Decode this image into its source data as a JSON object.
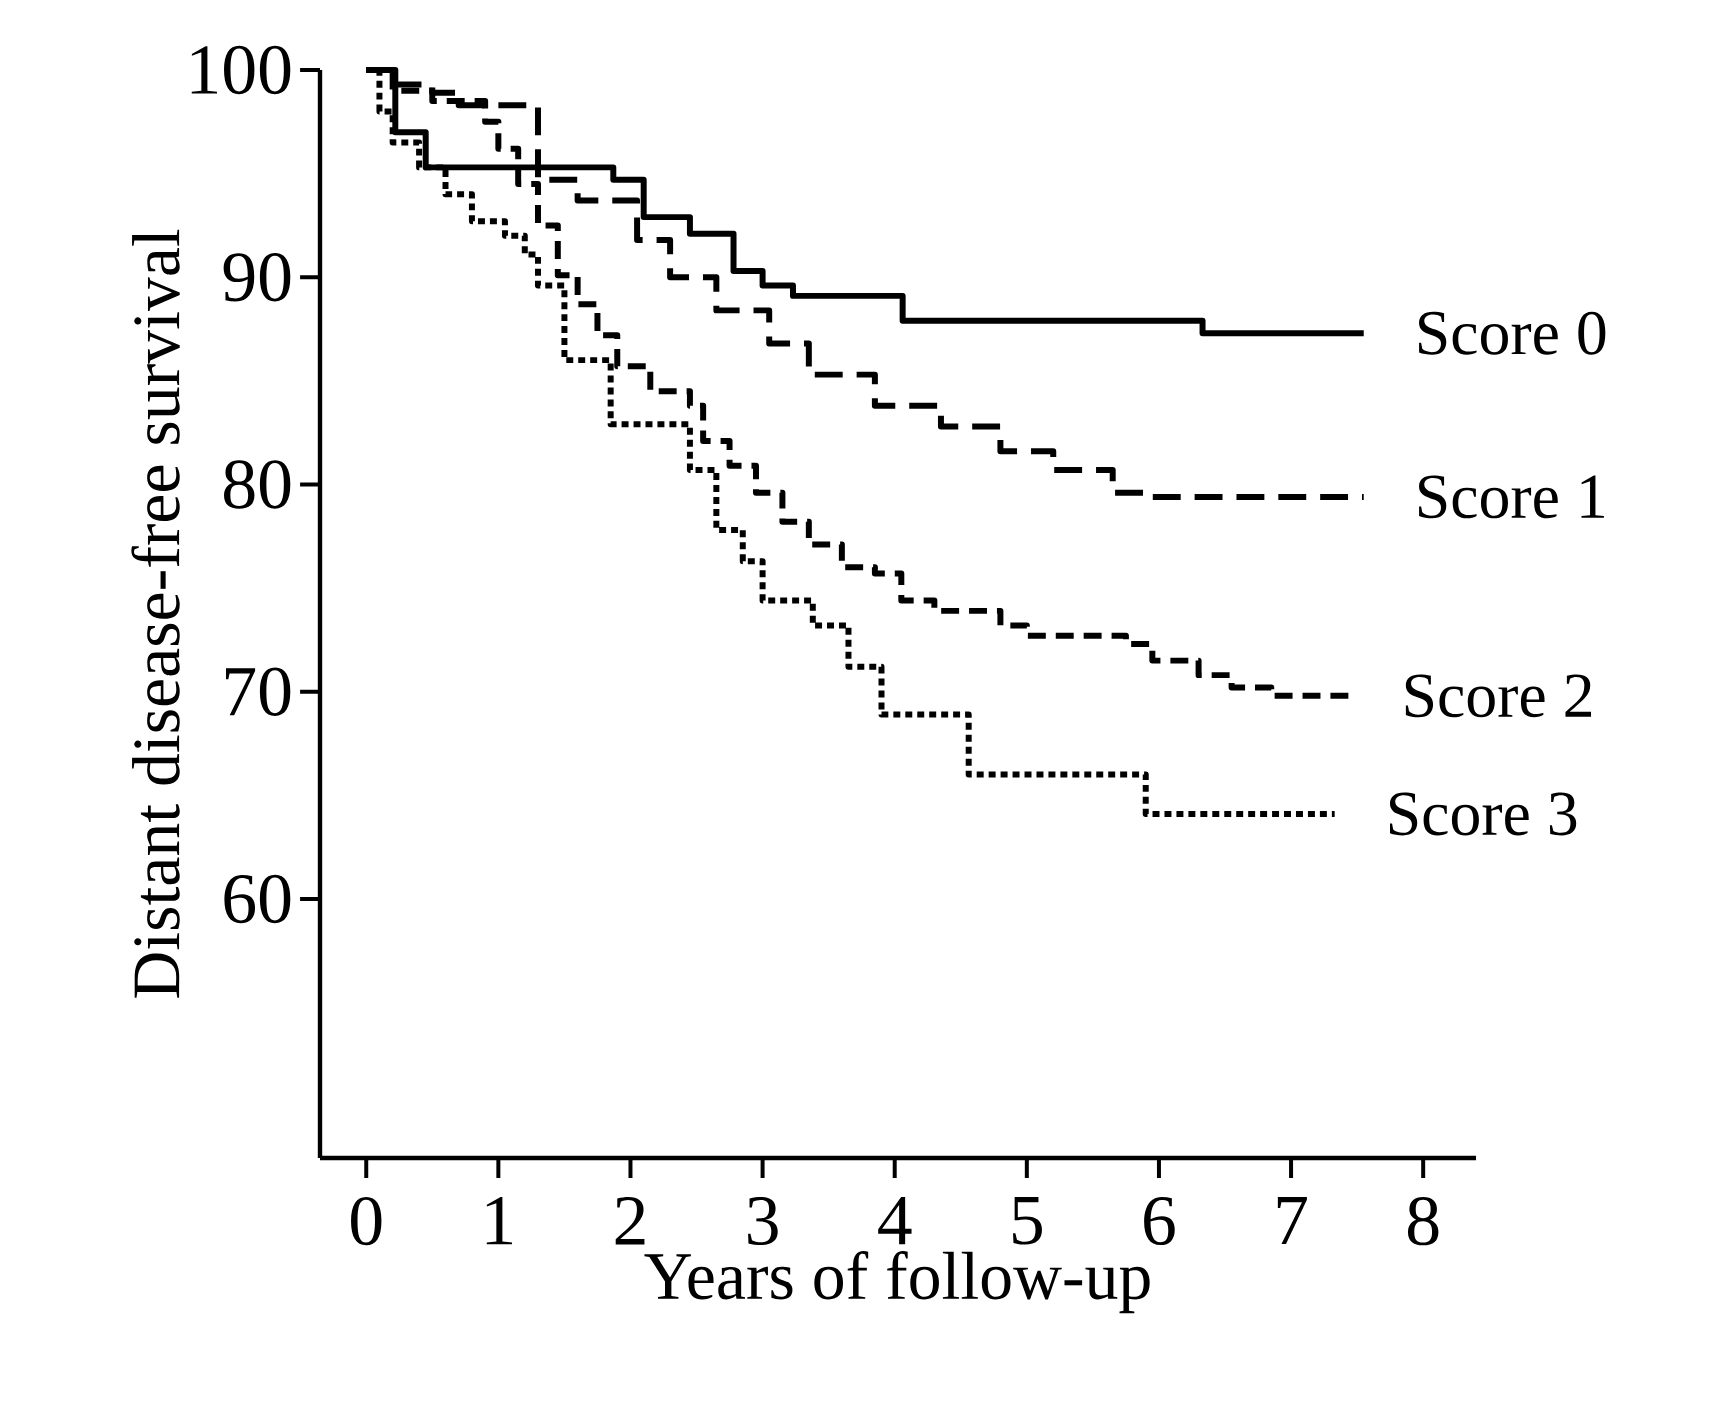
{
  "chart_data": {
    "type": "step",
    "xlabel": "Years of follow-up",
    "ylabel": "Distant disease-free survival",
    "xlim": [
      -0.35,
      8.4
    ],
    "ylim": [
      47.5,
      100
    ],
    "xticks": [
      0,
      1,
      2,
      3,
      4,
      5,
      6,
      7,
      8
    ],
    "yticks": [
      60,
      70,
      80,
      90,
      100
    ],
    "series": [
      {
        "name": "Score 0",
        "color": "#000000",
        "line_style": "solid",
        "x": [
          0,
          0.22,
          0.45,
          1.87,
          2.1,
          2.45,
          2.78,
          3.0,
          3.23,
          4.06,
          6.33,
          7.55
        ],
        "values": [
          100,
          97,
          95.3,
          94.7,
          92.9,
          92.1,
          90.3,
          89.6,
          89.1,
          87.9,
          87.3,
          87.3
        ]
      },
      {
        "name": "Score 1",
        "color": "#000000",
        "line_style": "dashed",
        "x": [
          0,
          0.2,
          0.5,
          0.7,
          1.3,
          1.6,
          2.05,
          2.3,
          2.65,
          3.05,
          3.35,
          3.85,
          4.35,
          4.8,
          5.2,
          5.65,
          5.95,
          7.55
        ],
        "values": [
          100,
          99.3,
          98.9,
          98.3,
          94.7,
          93.7,
          91.8,
          90,
          88.4,
          86.8,
          85.3,
          83.8,
          82.8,
          81.6,
          80.7,
          79.6,
          79.4,
          79.4
        ]
      },
      {
        "name": "Score 2",
        "color": "#000000",
        "line_style": "dashed",
        "x": [
          0,
          0.2,
          0.5,
          0.9,
          1.0,
          1.15,
          1.3,
          1.45,
          1.6,
          1.75,
          1.9,
          2.15,
          2.45,
          2.55,
          2.75,
          2.95,
          3.15,
          3.35,
          3.6,
          3.85,
          4.05,
          4.3,
          4.8,
          5.0,
          5.75,
          5.95,
          6.3,
          6.55,
          6.85,
          7.45
        ],
        "values": [
          100,
          99,
          98.5,
          97.5,
          96.2,
          94.5,
          92.5,
          90.1,
          88.7,
          87.2,
          85.7,
          84.5,
          83.8,
          82.1,
          80.9,
          79.6,
          78.2,
          77.1,
          76,
          75.7,
          74.4,
          73.9,
          73.2,
          72.7,
          72.3,
          71.5,
          70.8,
          70.2,
          69.8,
          69.8
        ]
      },
      {
        "name": "Score 3",
        "color": "#000000",
        "line_style": "dotted",
        "x": [
          0,
          0.1,
          0.2,
          0.4,
          0.6,
          0.8,
          1.05,
          1.2,
          1.3,
          1.5,
          1.85,
          2.45,
          2.65,
          2.85,
          3.0,
          3.38,
          3.65,
          3.9,
          4.56,
          5.9,
          7.33
        ],
        "values": [
          100,
          98,
          96.5,
          95.3,
          94,
          92.7,
          92,
          91.1,
          89.6,
          86,
          82.9,
          80.7,
          77.8,
          76.3,
          74.4,
          73.2,
          71.2,
          68.9,
          66,
          64.1,
          64.1
        ]
      }
    ]
  }
}
